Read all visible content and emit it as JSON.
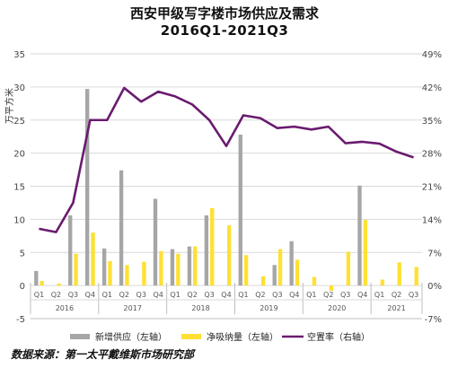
{
  "chart_data": {
    "type": "bar",
    "title": "西安甲级写字楼市场供应及需求",
    "subtitle": "2016Q1-2021Q3",
    "ylabel": "万平方米",
    "ylim": [
      -5,
      35
    ],
    "y_ticks": [
      -5,
      0,
      5,
      10,
      15,
      20,
      25,
      30,
      35
    ],
    "y2lim": [
      -7,
      49
    ],
    "y2_ticks": [
      "-7%",
      "0%",
      "7%",
      "14%",
      "21%",
      "28%",
      "35%",
      "42%",
      "49%"
    ],
    "categories": [
      "Q1",
      "Q2",
      "Q3",
      "Q4",
      "Q1",
      "Q2",
      "Q3",
      "Q4",
      "Q1",
      "Q2",
      "Q3",
      "Q4",
      "Q1",
      "Q2",
      "Q3",
      "Q4",
      "Q1",
      "Q2",
      "Q3",
      "Q4",
      "Q1",
      "Q2",
      "Q3"
    ],
    "years": [
      {
        "label": "2016",
        "count": 4
      },
      {
        "label": "2017",
        "count": 4
      },
      {
        "label": "2018",
        "count": 4
      },
      {
        "label": "2019",
        "count": 4
      },
      {
        "label": "2020",
        "count": 4
      },
      {
        "label": "2021",
        "count": 3
      }
    ],
    "series": [
      {
        "name": "新增供应（左轴）",
        "type": "bar",
        "axis": "left",
        "color": "#a6a6a6",
        "values": [
          2.2,
          0,
          10.6,
          29.7,
          5.6,
          17.4,
          0,
          13.1,
          5.5,
          5.9,
          10.6,
          0,
          22.8,
          0,
          3.1,
          6.7,
          0,
          0,
          0,
          15.1,
          0,
          0,
          0
        ]
      },
      {
        "name": "净吸纳量（左轴）",
        "type": "bar",
        "axis": "left",
        "color": "#ffe033",
        "values": [
          0.7,
          0.3,
          4.8,
          8.0,
          3.7,
          3.1,
          3.6,
          5.2,
          4.8,
          5.9,
          11.7,
          9.1,
          4.6,
          1.4,
          5.5,
          3.9,
          1.3,
          -0.8,
          5.1,
          9.9,
          0.9,
          3.5,
          2.8
        ]
      },
      {
        "name": "空置率（右轴）",
        "type": "line",
        "axis": "right",
        "color": "#6a1b6f",
        "values": [
          12.0,
          11.3,
          17.5,
          35.0,
          35.0,
          41.8,
          38.9,
          41.0,
          40.0,
          38.3,
          35.0,
          29.5,
          36.0,
          35.4,
          33.3,
          33.6,
          33.0,
          33.6,
          30.1,
          30.4,
          30.0,
          28.3,
          27.1
        ]
      }
    ],
    "grid": true,
    "legend_position": "bottom"
  },
  "source_note": "数据来源：第一太平戴维斯市场研究部"
}
